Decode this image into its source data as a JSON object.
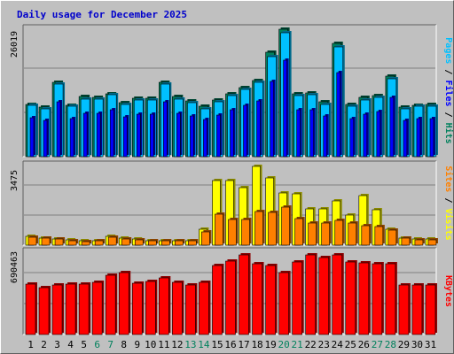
{
  "title": "Daily usage for December 2025",
  "colors": {
    "pages": "#00c0ff",
    "files": "#0000ff",
    "hits": "#00805c",
    "visits": "#ffff00",
    "sites": "#ff8000",
    "kbytes": "#ff0000",
    "weekend_label": "#00805c",
    "weekday_label": "#000000"
  },
  "chart_data": [
    {
      "type": "bar",
      "max_label": "26019",
      "ylim": [
        0,
        26019
      ],
      "series_labels": [
        "Pages",
        "Files",
        "Hits"
      ],
      "categories": [
        "1",
        "2",
        "3",
        "4",
        "5",
        "6",
        "7",
        "8",
        "9",
        "10",
        "11",
        "12",
        "13",
        "14",
        "15",
        "16",
        "17",
        "18",
        "19",
        "20",
        "21",
        "22",
        "23",
        "24",
        "25",
        "26",
        "27",
        "28",
        "29",
        "30",
        "31"
      ],
      "series": [
        {
          "name": "Hits",
          "values": [
            10800,
            10100,
            15200,
            10600,
            12300,
            12100,
            13000,
            11100,
            12000,
            12000,
            15300,
            12300,
            11500,
            10300,
            11700,
            13000,
            14200,
            15700,
            21400,
            26200,
            13000,
            13100,
            11200,
            23200,
            10700,
            12100,
            12600,
            16500,
            10200,
            10600,
            10700
          ]
        },
        {
          "name": "Pages",
          "values": [
            10500,
            9800,
            14900,
            10300,
            11900,
            11800,
            12700,
            10800,
            11600,
            11700,
            14900,
            11900,
            11100,
            9900,
            11300,
            12600,
            13800,
            15300,
            20600,
            25400,
            12600,
            12700,
            10800,
            22600,
            10400,
            11700,
            12200,
            16000,
            9900,
            10300,
            10400
          ]
        },
        {
          "name": "Files",
          "values": [
            8000,
            7500,
            11200,
            7800,
            9000,
            8900,
            9600,
            8200,
            8800,
            8800,
            11200,
            9000,
            8400,
            7600,
            8600,
            9600,
            10500,
            11500,
            15500,
            19800,
            9600,
            9700,
            8300,
            17200,
            7800,
            8800,
            9200,
            12100,
            7500,
            7800,
            7800
          ]
        }
      ]
    },
    {
      "type": "bar",
      "max_label": "3475",
      "ylim": [
        0,
        3475
      ],
      "series_labels": [
        "Sites",
        "Visits"
      ],
      "categories": [
        "1",
        "2",
        "3",
        "4",
        "5",
        "6",
        "7",
        "8",
        "9",
        "10",
        "11",
        "12",
        "13",
        "14",
        "15",
        "16",
        "17",
        "18",
        "19",
        "20",
        "21",
        "22",
        "23",
        "24",
        "25",
        "26",
        "27",
        "28",
        "29",
        "30",
        "31"
      ],
      "series": [
        {
          "name": "Visits",
          "values": [
            380,
            330,
            280,
            220,
            180,
            200,
            400,
            300,
            260,
            210,
            190,
            210,
            200,
            700,
            2860,
            2840,
            2540,
            3475,
            2960,
            2300,
            2280,
            1600,
            1620,
            1960,
            1320,
            2200,
            1560,
            700,
            330,
            270,
            270
          ]
        },
        {
          "name": "Sites",
          "values": [
            370,
            320,
            270,
            210,
            170,
            190,
            340,
            270,
            240,
            200,
            180,
            190,
            180,
            580,
            1350,
            1140,
            1140,
            1500,
            1440,
            1680,
            1170,
            960,
            970,
            1100,
            990,
            840,
            830,
            660,
            300,
            250,
            250
          ]
        }
      ]
    },
    {
      "type": "bar",
      "max_label": "690463",
      "ylim": [
        0,
        690463
      ],
      "series_labels": [
        "KBytes"
      ],
      "categories": [
        "1",
        "2",
        "3",
        "4",
        "5",
        "6",
        "7",
        "8",
        "9",
        "10",
        "11",
        "12",
        "13",
        "14",
        "15",
        "16",
        "17",
        "18",
        "19",
        "20",
        "21",
        "22",
        "23",
        "24",
        "25",
        "26",
        "27",
        "28",
        "29",
        "30",
        "31"
      ],
      "series": [
        {
          "name": "KBytes",
          "values": [
            430000,
            400000,
            420000,
            430000,
            430000,
            440000,
            500000,
            525000,
            436000,
            450000,
            481000,
            440000,
            417000,
            446000,
            589000,
            623000,
            677000,
            601000,
            588000,
            526000,
            612000,
            677000,
            655000,
            677000,
            612000,
            606000,
            600000,
            600000,
            419000,
            419000,
            419000
          ]
        }
      ]
    }
  ],
  "weekend_days": [
    6,
    7,
    13,
    14,
    20,
    21,
    27,
    28
  ]
}
